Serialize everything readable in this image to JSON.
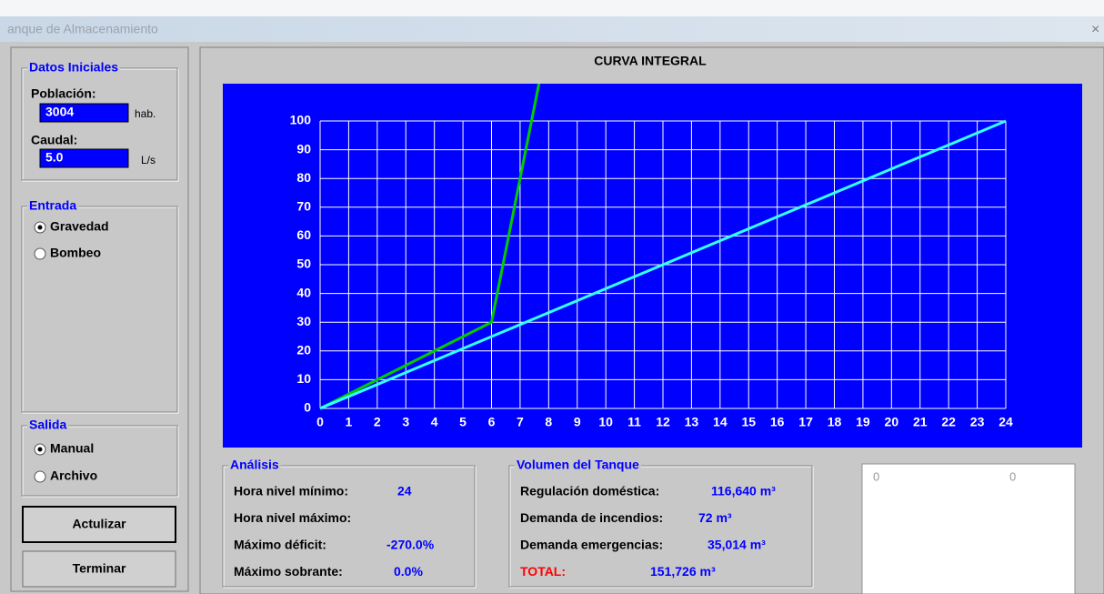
{
  "window": {
    "title": "anque de Almacenamiento"
  },
  "datos_iniciales": {
    "title": "Datos Iniciales",
    "poblacion": {
      "label": "Población:",
      "value": "3004",
      "unit": "hab."
    },
    "caudal": {
      "label": "Caudal:",
      "value": "5.0",
      "unit": "L/s"
    }
  },
  "entrada": {
    "title": "Entrada",
    "options": [
      "Gravedad",
      "Bombeo"
    ],
    "selected": 0
  },
  "salida": {
    "title": "Salida",
    "options": [
      "Manual",
      "Archivo"
    ],
    "selected": 0
  },
  "buttons": [
    "Actulizar",
    "Terminar"
  ],
  "chart_data": {
    "type": "line",
    "title": "CURVA INTEGRAL",
    "xlim": [
      0,
      24
    ],
    "xticks": [
      0,
      1,
      2,
      3,
      4,
      5,
      6,
      7,
      8,
      9,
      10,
      11,
      12,
      13,
      14,
      15,
      16,
      17,
      18,
      19,
      20,
      21,
      22,
      23,
      24
    ],
    "ylim": [
      0,
      100
    ],
    "yticks": [
      0,
      10,
      20,
      30,
      40,
      50,
      60,
      70,
      80,
      90,
      100
    ],
    "grid": true,
    "series": [
      {
        "color": "#00cc00",
        "x": [
          0,
          6,
          7,
          8
        ],
        "values": [
          0,
          30,
          80,
          130
        ]
      },
      {
        "color": "#33ffff",
        "x": [
          0,
          24
        ],
        "values": [
          0,
          100
        ]
      }
    ]
  },
  "analisis": {
    "title": "Análisis",
    "rows": [
      {
        "label": "Hora nivel mínimo:",
        "value": "24"
      },
      {
        "label": "Hora nivel máximo:"
      },
      {
        "label": "Máximo déficit:",
        "value": "-270.0%"
      },
      {
        "label": "Máximo sobrante:",
        "value": "0.0%"
      }
    ]
  },
  "volumen": {
    "title": "Volumen del Tanque",
    "rows": [
      {
        "label": "Regulación doméstica:",
        "value": "116,640 m³"
      },
      {
        "label": "Demanda de incendios:",
        "value": "72 m³"
      },
      {
        "label": "Demanda emergencias:",
        "value": "35,014 m³"
      },
      {
        "label": "TOTAL:",
        "value": "151,726 m³"
      }
    ]
  },
  "display": {
    "values": [
      "0",
      "0"
    ]
  }
}
